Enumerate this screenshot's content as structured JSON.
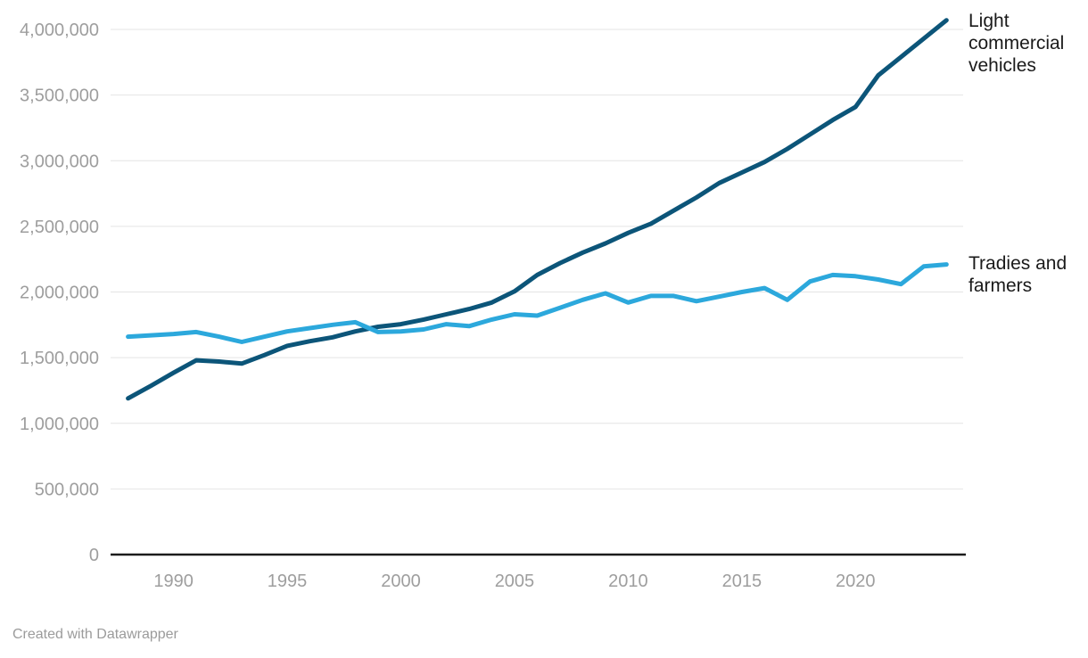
{
  "chart_data": {
    "type": "line",
    "x": [
      1988,
      1989,
      1990,
      1991,
      1992,
      1993,
      1994,
      1995,
      1996,
      1997,
      1998,
      1999,
      2000,
      2001,
      2002,
      2003,
      2004,
      2005,
      2006,
      2007,
      2008,
      2009,
      2010,
      2011,
      2012,
      2013,
      2014,
      2015,
      2016,
      2017,
      2018,
      2019,
      2020,
      2021,
      2022,
      2023,
      2024
    ],
    "series": [
      {
        "name": "Light commercial vehicles",
        "color": "#0c5579",
        "values": [
          1190000,
          1285000,
          1385000,
          1480000,
          1470000,
          1455000,
          1520000,
          1590000,
          1625000,
          1655000,
          1700000,
          1735000,
          1755000,
          1790000,
          1830000,
          1870000,
          1920000,
          2005000,
          2130000,
          2220000,
          2300000,
          2370000,
          2450000,
          2520000,
          2620000,
          2720000,
          2830000,
          2910000,
          2990000,
          3090000,
          3200000,
          3310000,
          3410000,
          3650000,
          3790000,
          3930000,
          4070000
        ]
      },
      {
        "name": "Tradies and farmers",
        "color": "#2ca8dc",
        "values": [
          1660000,
          1670000,
          1680000,
          1695000,
          1660000,
          1620000,
          1660000,
          1700000,
          1725000,
          1750000,
          1770000,
          1695000,
          1700000,
          1715000,
          1755000,
          1740000,
          1790000,
          1830000,
          1820000,
          1880000,
          1940000,
          1990000,
          1920000,
          1970000,
          1970000,
          1930000,
          1965000,
          2000000,
          2030000,
          1940000,
          2080000,
          2130000,
          2120000,
          2095000,
          2060000,
          2195000,
          2210000
        ]
      }
    ],
    "xlim": [
      1988,
      2024
    ],
    "ylim": [
      0,
      4000000
    ],
    "grid": "horizontal",
    "legend_position": "right-direct-labels",
    "y_ticks": [
      {
        "value": 0,
        "label": "0"
      },
      {
        "value": 500000,
        "label": "500,000"
      },
      {
        "value": 1000000,
        "label": "1,000,000"
      },
      {
        "value": 1500000,
        "label": "1,500,000"
      },
      {
        "value": 2000000,
        "label": "2,000,000"
      },
      {
        "value": 2500000,
        "label": "2,500,000"
      },
      {
        "value": 3000000,
        "label": "3,000,000"
      },
      {
        "value": 3500000,
        "label": "3,500,000"
      },
      {
        "value": 4000000,
        "label": "4,000,000"
      }
    ],
    "x_ticks": [
      {
        "value": 1990,
        "label": "1990"
      },
      {
        "value": 1995,
        "label": "1995"
      },
      {
        "value": 2000,
        "label": "2000"
      },
      {
        "value": 2005,
        "label": "2005"
      },
      {
        "value": 2010,
        "label": "2010"
      },
      {
        "value": 2015,
        "label": "2015"
      },
      {
        "value": 2020,
        "label": "2020"
      }
    ]
  },
  "footer": {
    "credit": "Created with Datawrapper"
  }
}
